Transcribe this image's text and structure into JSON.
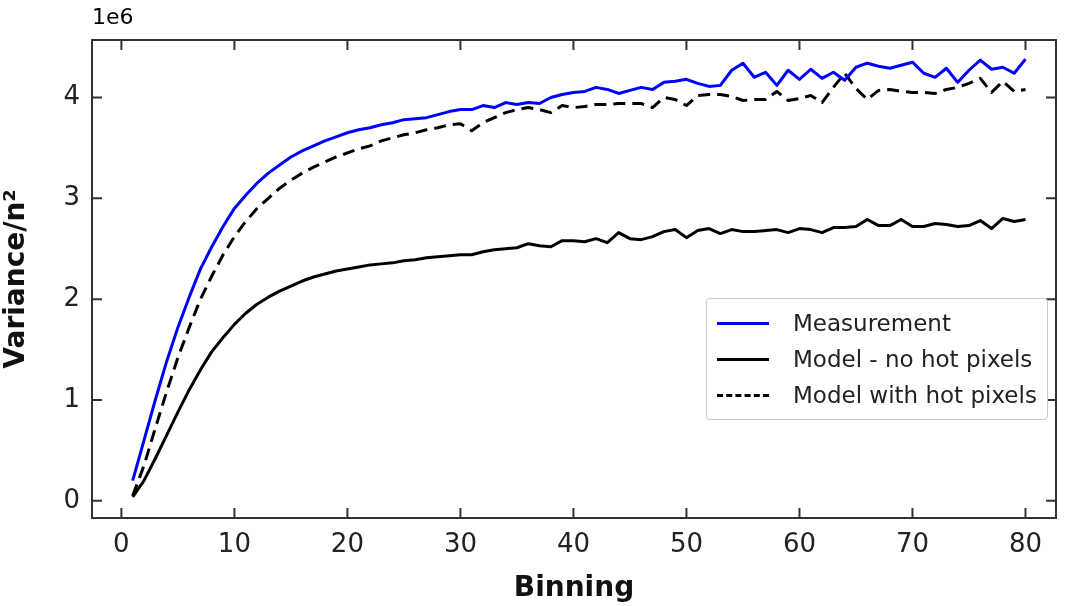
{
  "chart_data": {
    "type": "line",
    "xlabel": "Binning",
    "ylabel": "Variance/n²",
    "annotations": [
      "1e6"
    ],
    "x": [
      1,
      2,
      3,
      4,
      5,
      6,
      7,
      8,
      9,
      10,
      11,
      12,
      13,
      14,
      15,
      16,
      17,
      18,
      19,
      20,
      21,
      22,
      23,
      24,
      25,
      26,
      27,
      28,
      29,
      30,
      31,
      32,
      33,
      34,
      35,
      36,
      37,
      38,
      39,
      40,
      41,
      42,
      43,
      44,
      45,
      46,
      47,
      48,
      49,
      50,
      51,
      52,
      53,
      54,
      55,
      56,
      57,
      58,
      59,
      60,
      61,
      62,
      63,
      64,
      65,
      66,
      67,
      68,
      69,
      70,
      71,
      72,
      73,
      74,
      75,
      76,
      77,
      78,
      79,
      80
    ],
    "series": [
      {
        "name": "Measurement",
        "color": "#0000ff",
        "line_style": "solid",
        "values": [
          0.2,
          0.6,
          1.0,
          1.38,
          1.72,
          2.02,
          2.3,
          2.52,
          2.72,
          2.9,
          3.03,
          3.15,
          3.25,
          3.33,
          3.41,
          3.47,
          3.52,
          3.57,
          3.61,
          3.65,
          3.68,
          3.7,
          3.73,
          3.75,
          3.78,
          3.79,
          3.8,
          3.83,
          3.86,
          3.88,
          3.88,
          3.92,
          3.9,
          3.95,
          3.93,
          3.95,
          3.94,
          4.0,
          4.03,
          4.05,
          4.06,
          4.1,
          4.08,
          4.04,
          4.07,
          4.1,
          4.08,
          4.15,
          4.16,
          4.18,
          4.14,
          4.11,
          4.12,
          4.27,
          4.34,
          4.2,
          4.25,
          4.12,
          4.27,
          4.18,
          4.28,
          4.19,
          4.25,
          4.17,
          4.3,
          4.34,
          4.31,
          4.29,
          4.32,
          4.35,
          4.24,
          4.2,
          4.29,
          4.15,
          4.27,
          4.37,
          4.28,
          4.3,
          4.24,
          4.38
        ]
      },
      {
        "name": "Model - no hot pixels",
        "color": "#000000",
        "line_style": "solid",
        "values": [
          0.04,
          0.2,
          0.42,
          0.65,
          0.88,
          1.1,
          1.3,
          1.48,
          1.62,
          1.75,
          1.86,
          1.95,
          2.02,
          2.08,
          2.13,
          2.18,
          2.22,
          2.25,
          2.28,
          2.3,
          2.32,
          2.34,
          2.35,
          2.36,
          2.38,
          2.39,
          2.41,
          2.42,
          2.43,
          2.44,
          2.44,
          2.47,
          2.49,
          2.5,
          2.51,
          2.55,
          2.53,
          2.52,
          2.58,
          2.58,
          2.57,
          2.6,
          2.56,
          2.66,
          2.6,
          2.59,
          2.62,
          2.67,
          2.69,
          2.61,
          2.68,
          2.7,
          2.65,
          2.69,
          2.67,
          2.67,
          2.68,
          2.69,
          2.66,
          2.7,
          2.69,
          2.66,
          2.71,
          2.71,
          2.72,
          2.79,
          2.73,
          2.73,
          2.79,
          2.72,
          2.72,
          2.75,
          2.74,
          2.72,
          2.73,
          2.78,
          2.7,
          2.8,
          2.77,
          2.79
        ]
      },
      {
        "name": "Model with hot pixels",
        "color": "#000000",
        "line_style": "dashed",
        "values": [
          0.05,
          0.35,
          0.72,
          1.08,
          1.42,
          1.72,
          2.0,
          2.23,
          2.44,
          2.62,
          2.77,
          2.9,
          3.0,
          3.1,
          3.18,
          3.25,
          3.31,
          3.36,
          3.41,
          3.45,
          3.49,
          3.52,
          3.57,
          3.6,
          3.63,
          3.65,
          3.68,
          3.7,
          3.73,
          3.74,
          3.67,
          3.75,
          3.8,
          3.85,
          3.88,
          3.9,
          3.88,
          3.85,
          3.92,
          3.9,
          3.91,
          3.93,
          3.93,
          3.94,
          3.94,
          3.94,
          3.9,
          4.0,
          3.98,
          3.92,
          4.02,
          4.03,
          4.03,
          4.01,
          3.97,
          3.98,
          3.98,
          4.06,
          3.97,
          3.99,
          4.02,
          3.95,
          4.1,
          4.24,
          4.09,
          3.98,
          4.07,
          4.08,
          4.06,
          4.05,
          4.05,
          4.04,
          4.08,
          4.1,
          4.14,
          4.19,
          4.05,
          4.16,
          4.06,
          4.08
        ]
      }
    ],
    "xlim": [
      -2.6,
      82.7
    ],
    "xticks": [
      0,
      10,
      20,
      30,
      40,
      50,
      60,
      70,
      80
    ],
    "ylim": [
      -0.17,
      4.57
    ],
    "yticks": [
      0,
      1,
      2,
      3,
      4
    ],
    "grid": false,
    "legend": "right",
    "marker": "none"
  }
}
